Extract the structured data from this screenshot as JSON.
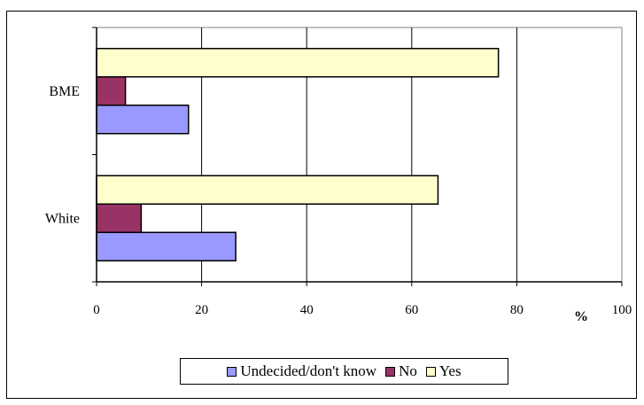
{
  "chart_data": {
    "type": "bar",
    "orientation": "horizontal",
    "categories": [
      "BME",
      "White"
    ],
    "series": [
      {
        "name": "Undecided/don't know",
        "color": "#9999FF",
        "values": [
          17.5,
          26.5
        ]
      },
      {
        "name": "No",
        "color": "#993366",
        "values": [
          5.5,
          8.5
        ]
      },
      {
        "name": "Yes",
        "color": "#FFFFCC",
        "values": [
          76.5,
          65
        ]
      }
    ],
    "xlim": [
      0,
      100
    ],
    "xticks": [
      "0",
      "20",
      "40",
      "60",
      "80",
      "100"
    ],
    "xlabel": "%",
    "grid": true,
    "legend_position": "bottom"
  }
}
